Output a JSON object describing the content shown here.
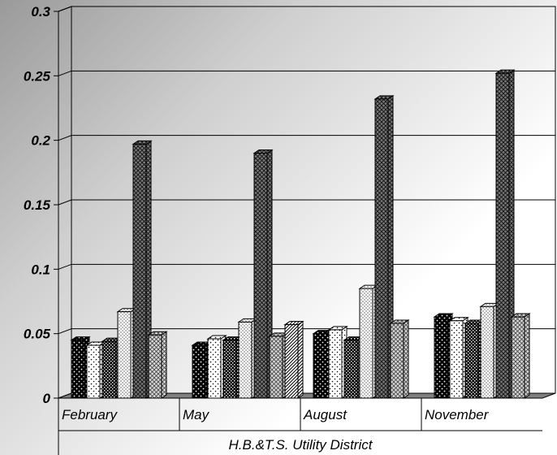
{
  "chart_data": {
    "type": "bar",
    "style": "3d-clustered-bar",
    "title": "",
    "xlabel": "H.B.&T.S. Utility District",
    "ylabel": "",
    "ylim": [
      0,
      0.3
    ],
    "yticks": [
      0,
      0.05,
      0.1,
      0.15,
      0.2,
      0.25,
      0.3
    ],
    "ytick_labels": [
      "0",
      "0.05",
      "0.1",
      "0.15",
      "0.2",
      "0.25",
      "0.3"
    ],
    "grid": true,
    "legend": "none",
    "categories": [
      "February",
      "May",
      "August",
      "November"
    ],
    "series": [
      {
        "pattern": "black-dots",
        "values": [
          0.045,
          0.041,
          0.05,
          0.063
        ]
      },
      {
        "pattern": "white-dots",
        "values": [
          0.041,
          0.046,
          0.053,
          0.06
        ]
      },
      {
        "pattern": "dense-checker",
        "values": [
          0.044,
          0.045,
          0.045,
          0.058
        ]
      },
      {
        "pattern": "light-dots",
        "values": [
          0.067,
          0.059,
          0.085,
          0.071
        ]
      },
      {
        "pattern": "dark-crosshatch",
        "values": [
          0.197,
          0.19,
          0.232,
          0.252
        ]
      },
      {
        "pattern": "light-crosshatch",
        "values": [
          0.049,
          0.048,
          0.058,
          0.063
        ]
      },
      {
        "pattern": "diagonal-hatch",
        "values": [
          null,
          0.057,
          null,
          null
        ]
      }
    ]
  }
}
